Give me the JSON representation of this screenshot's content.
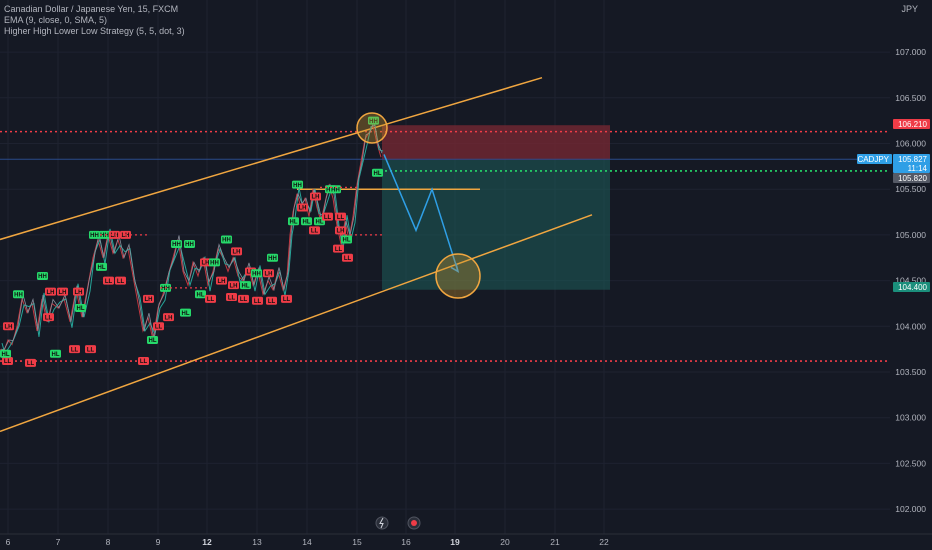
{
  "legend": {
    "symbol_line": "Canadian Dollar / Japanese Yen, 15, FXCM",
    "indicator1": "EMA (9, close, 0, SMA, 5)",
    "indicator2": "Higher High Lower Low Strategy (5, 5, dot, 3)"
  },
  "currency": "JPY",
  "colors": {
    "background": "#151924",
    "channel": "#f0a640",
    "bull": "#26d96a",
    "bear": "#ef3c47",
    "target_zone": "#1e5c59",
    "stop_zone": "#7a2833",
    "arrow": "#2f9fe6",
    "circle_fill": "#c8922a",
    "price_line": "#2a4a8a"
  },
  "chart_data": {
    "type": "line",
    "ylim": [
      101.5,
      107.6
    ],
    "y_ticks": [
      "107.000",
      "106.500",
      "106.000",
      "105.500",
      "105.000",
      "104.500",
      "104.000",
      "103.500",
      "103.000",
      "102.500",
      "102.000"
    ],
    "x_labels": [
      "6",
      "7",
      "8",
      "9",
      "12",
      "13",
      "14",
      "15",
      "16",
      "19",
      "20",
      "21",
      "22"
    ],
    "x_bold": [
      "12",
      "19"
    ],
    "price_tags": [
      {
        "label": "106.210",
        "value": 106.21,
        "color": "#ef3c47"
      },
      {
        "label": "CADJPY",
        "value": 105.88,
        "color": "#2f9fe6"
      },
      {
        "label": "105.827",
        "value": 105.827,
        "color": "#2f9fe6"
      },
      {
        "label": "11:14",
        "value": 105.74,
        "color": "#2f9fe6"
      },
      {
        "label": "105.820",
        "value": 105.68,
        "color": "#555a66"
      },
      {
        "label": "104.400",
        "value": 104.4,
        "color": "#1b8f7c"
      }
    ],
    "levels": [
      {
        "name": "upper-resistance",
        "value": 106.13,
        "style": "dotted",
        "color": "#ef3c47"
      },
      {
        "name": "lower-support",
        "value": 103.62,
        "style": "dotted",
        "color": "#ef3c47"
      },
      {
        "name": "entry-level",
        "value": 105.7,
        "style": "dotted",
        "color": "#26d96a"
      }
    ],
    "series": [
      {
        "values": [
          [
            0,
            103.75
          ],
          [
            3,
            103.7
          ],
          [
            8,
            103.85
          ],
          [
            12,
            103.8
          ],
          [
            17,
            104.0
          ],
          [
            22,
            104.3
          ],
          [
            27,
            104.15
          ],
          [
            32,
            104.25
          ],
          [
            37,
            103.95
          ],
          [
            42,
            104.3
          ],
          [
            47,
            104.05
          ],
          [
            52,
            104.25
          ],
          [
            58,
            104.2
          ],
          [
            64,
            104.3
          ],
          [
            70,
            104.05
          ],
          [
            76,
            104.4
          ],
          [
            82,
            104.1
          ],
          [
            88,
            104.45
          ],
          [
            93,
            104.75
          ],
          [
            98,
            104.95
          ],
          [
            103,
            104.75
          ],
          [
            108,
            105.0
          ],
          [
            113,
            104.8
          ],
          [
            118,
            104.95
          ],
          [
            123,
            104.75
          ],
          [
            128,
            104.85
          ],
          [
            133,
            104.55
          ],
          [
            138,
            104.25
          ],
          [
            143,
            103.95
          ],
          [
            148,
            104.1
          ],
          [
            153,
            103.85
          ],
          [
            158,
            104.2
          ],
          [
            163,
            104.35
          ],
          [
            168,
            104.55
          ],
          [
            173,
            104.75
          ],
          [
            178,
            104.95
          ],
          [
            183,
            104.6
          ],
          [
            188,
            104.45
          ],
          [
            193,
            104.7
          ],
          [
            198,
            104.55
          ],
          [
            203,
            104.75
          ],
          [
            208,
            104.45
          ],
          [
            213,
            104.6
          ],
          [
            218,
            104.85
          ],
          [
            223,
            104.75
          ],
          [
            228,
            104.6
          ],
          [
            233,
            104.75
          ],
          [
            238,
            104.55
          ],
          [
            243,
            104.5
          ],
          [
            248,
            104.65
          ],
          [
            253,
            104.45
          ],
          [
            258,
            104.6
          ],
          [
            263,
            104.35
          ],
          [
            268,
            104.5
          ],
          [
            273,
            104.4
          ],
          [
            278,
            104.6
          ],
          [
            283,
            104.4
          ],
          [
            287,
            104.55
          ],
          [
            290,
            105.0
          ],
          [
            293,
            105.25
          ],
          [
            297,
            105.45
          ],
          [
            301,
            105.3
          ],
          [
            305,
            105.4
          ],
          [
            309,
            105.2
          ],
          [
            313,
            105.5
          ],
          [
            317,
            105.3
          ],
          [
            321,
            105.15
          ],
          [
            325,
            105.35
          ],
          [
            329,
            105.55
          ],
          [
            333,
            105.4
          ],
          [
            337,
            105.1
          ],
          [
            341,
            104.9
          ],
          [
            345,
            105.15
          ],
          [
            349,
            104.95
          ],
          [
            353,
            105.2
          ],
          [
            357,
            105.55
          ],
          [
            361,
            105.8
          ],
          [
            365,
            106.05
          ],
          [
            369,
            106.12
          ],
          [
            373,
            106.2
          ],
          [
            377,
            106.0
          ],
          [
            381,
            105.85
          ]
        ]
      }
    ],
    "markers": [
      {
        "t": "LL",
        "x": 7,
        "y": 103.62,
        "c": "bear"
      },
      {
        "t": "HL",
        "x": 5,
        "y": 103.7,
        "c": "bull"
      },
      {
        "t": "LH",
        "x": 8,
        "y": 104.0,
        "c": "bear"
      },
      {
        "t": "HH",
        "x": 18,
        "y": 104.35,
        "c": "bull"
      },
      {
        "t": "LL",
        "x": 30,
        "y": 103.6,
        "c": "bear"
      },
      {
        "t": "HH",
        "x": 42,
        "y": 104.55,
        "c": "bull"
      },
      {
        "t": "LH",
        "x": 50,
        "y": 104.38,
        "c": "bear"
      },
      {
        "t": "LL",
        "x": 48,
        "y": 104.1,
        "c": "bear"
      },
      {
        "t": "HL",
        "x": 55,
        "y": 103.7,
        "c": "bull"
      },
      {
        "t": "LH",
        "x": 62,
        "y": 104.38,
        "c": "bear"
      },
      {
        "t": "LL",
        "x": 74,
        "y": 103.75,
        "c": "bear"
      },
      {
        "t": "HL",
        "x": 80,
        "y": 104.2,
        "c": "bull"
      },
      {
        "t": "LH",
        "x": 78,
        "y": 104.38,
        "c": "bear"
      },
      {
        "t": "LL",
        "x": 90,
        "y": 103.75,
        "c": "bear"
      },
      {
        "t": "HH",
        "x": 94,
        "y": 105.0,
        "c": "bull"
      },
      {
        "t": "HH",
        "x": 104,
        "y": 105.0,
        "c": "bull"
      },
      {
        "t": "LH",
        "x": 114,
        "y": 105.0,
        "c": "bear"
      },
      {
        "t": "LH",
        "x": 125,
        "y": 105.0,
        "c": "bear"
      },
      {
        "t": "HL",
        "x": 101,
        "y": 104.65,
        "c": "bull"
      },
      {
        "t": "LL",
        "x": 108,
        "y": 104.5,
        "c": "bear"
      },
      {
        "t": "LL",
        "x": 120,
        "y": 104.5,
        "c": "bear"
      },
      {
        "t": "LH",
        "x": 148,
        "y": 104.3,
        "c": "bear"
      },
      {
        "t": "LL",
        "x": 143,
        "y": 103.62,
        "c": "bear"
      },
      {
        "t": "HL",
        "x": 152,
        "y": 103.85,
        "c": "bull"
      },
      {
        "t": "LL",
        "x": 158,
        "y": 104.0,
        "c": "bear"
      },
      {
        "t": "HH",
        "x": 165,
        "y": 104.42,
        "c": "bull"
      },
      {
        "t": "LH",
        "x": 168,
        "y": 104.1,
        "c": "bear"
      },
      {
        "t": "HH",
        "x": 176,
        "y": 104.9,
        "c": "bull"
      },
      {
        "t": "HL",
        "x": 185,
        "y": 104.15,
        "c": "bull"
      },
      {
        "t": "HH",
        "x": 189,
        "y": 104.9,
        "c": "bull"
      },
      {
        "t": "LH",
        "x": 205,
        "y": 104.7,
        "c": "bear"
      },
      {
        "t": "HL",
        "x": 200,
        "y": 104.35,
        "c": "bull"
      },
      {
        "t": "HH",
        "x": 214,
        "y": 104.7,
        "c": "bull"
      },
      {
        "t": "LL",
        "x": 210,
        "y": 104.3,
        "c": "bear"
      },
      {
        "t": "HH",
        "x": 226,
        "y": 104.95,
        "c": "bull"
      },
      {
        "t": "LH",
        "x": 236,
        "y": 104.82,
        "c": "bear"
      },
      {
        "t": "LH",
        "x": 221,
        "y": 104.5,
        "c": "bear"
      },
      {
        "t": "LH",
        "x": 233,
        "y": 104.45,
        "c": "bear"
      },
      {
        "t": "LL",
        "x": 231,
        "y": 104.32,
        "c": "bear"
      },
      {
        "t": "HL",
        "x": 245,
        "y": 104.45,
        "c": "bull"
      },
      {
        "t": "LH",
        "x": 250,
        "y": 104.6,
        "c": "bear"
      },
      {
        "t": "HH",
        "x": 256,
        "y": 104.58,
        "c": "bull"
      },
      {
        "t": "LH",
        "x": 268,
        "y": 104.58,
        "c": "bear"
      },
      {
        "t": "HH",
        "x": 272,
        "y": 104.75,
        "c": "bull"
      },
      {
        "t": "LL",
        "x": 243,
        "y": 104.3,
        "c": "bear"
      },
      {
        "t": "LL",
        "x": 257,
        "y": 104.28,
        "c": "bear"
      },
      {
        "t": "LL",
        "x": 271,
        "y": 104.28,
        "c": "bear"
      },
      {
        "t": "LL",
        "x": 286,
        "y": 104.3,
        "c": "bear"
      },
      {
        "t": "HH",
        "x": 297,
        "y": 105.55,
        "c": "bull"
      },
      {
        "t": "HL",
        "x": 293,
        "y": 105.15,
        "c": "bull"
      },
      {
        "t": "LH",
        "x": 302,
        "y": 105.3,
        "c": "bear"
      },
      {
        "t": "LH",
        "x": 315,
        "y": 105.42,
        "c": "bear"
      },
      {
        "t": "HH",
        "x": 330,
        "y": 105.5,
        "c": "bull"
      },
      {
        "t": "HL",
        "x": 306,
        "y": 105.15,
        "c": "bull"
      },
      {
        "t": "HL",
        "x": 319,
        "y": 105.15,
        "c": "bull"
      },
      {
        "t": "LL",
        "x": 314,
        "y": 105.05,
        "c": "bear"
      },
      {
        "t": "LL",
        "x": 327,
        "y": 105.2,
        "c": "bear"
      },
      {
        "t": "LL",
        "x": 340,
        "y": 105.2,
        "c": "bear"
      },
      {
        "t": "HL",
        "x": 346,
        "y": 104.95,
        "c": "bull"
      },
      {
        "t": "HH",
        "x": 335,
        "y": 105.5,
        "c": "bull"
      },
      {
        "t": "LL",
        "x": 338,
        "y": 104.85,
        "c": "bear"
      },
      {
        "t": "LL",
        "x": 347,
        "y": 104.75,
        "c": "bear"
      },
      {
        "t": "LH",
        "x": 340,
        "y": 105.05,
        "c": "bear"
      },
      {
        "t": "HH",
        "x": 373,
        "y": 106.25,
        "c": "bull"
      },
      {
        "t": "HL",
        "x": 377,
        "y": 105.68,
        "c": "bull"
      }
    ],
    "channel": {
      "upper": [
        [
          0,
          104.95
        ],
        [
          542,
          106.72
        ]
      ],
      "lower": [
        [
          0,
          102.85
        ],
        [
          592,
          105.22
        ]
      ]
    },
    "trade": {
      "x0": 382,
      "x1": 610,
      "entry": 105.82,
      "stop": 106.2,
      "target": 104.4
    },
    "projection": [
      [
        384,
        105.88
      ],
      [
        416,
        105.05
      ],
      [
        432,
        105.5
      ],
      [
        458,
        104.6
      ]
    ],
    "circles": [
      {
        "x": 372,
        "y": 106.17,
        "r": 15
      },
      {
        "x": 458,
        "y": 104.55,
        "r": 22
      }
    ],
    "hline": {
      "x0": 297,
      "x1": 480,
      "value": 105.5
    }
  },
  "bottom_icons": {
    "left": "lightning-icon",
    "right": "record-icon"
  }
}
